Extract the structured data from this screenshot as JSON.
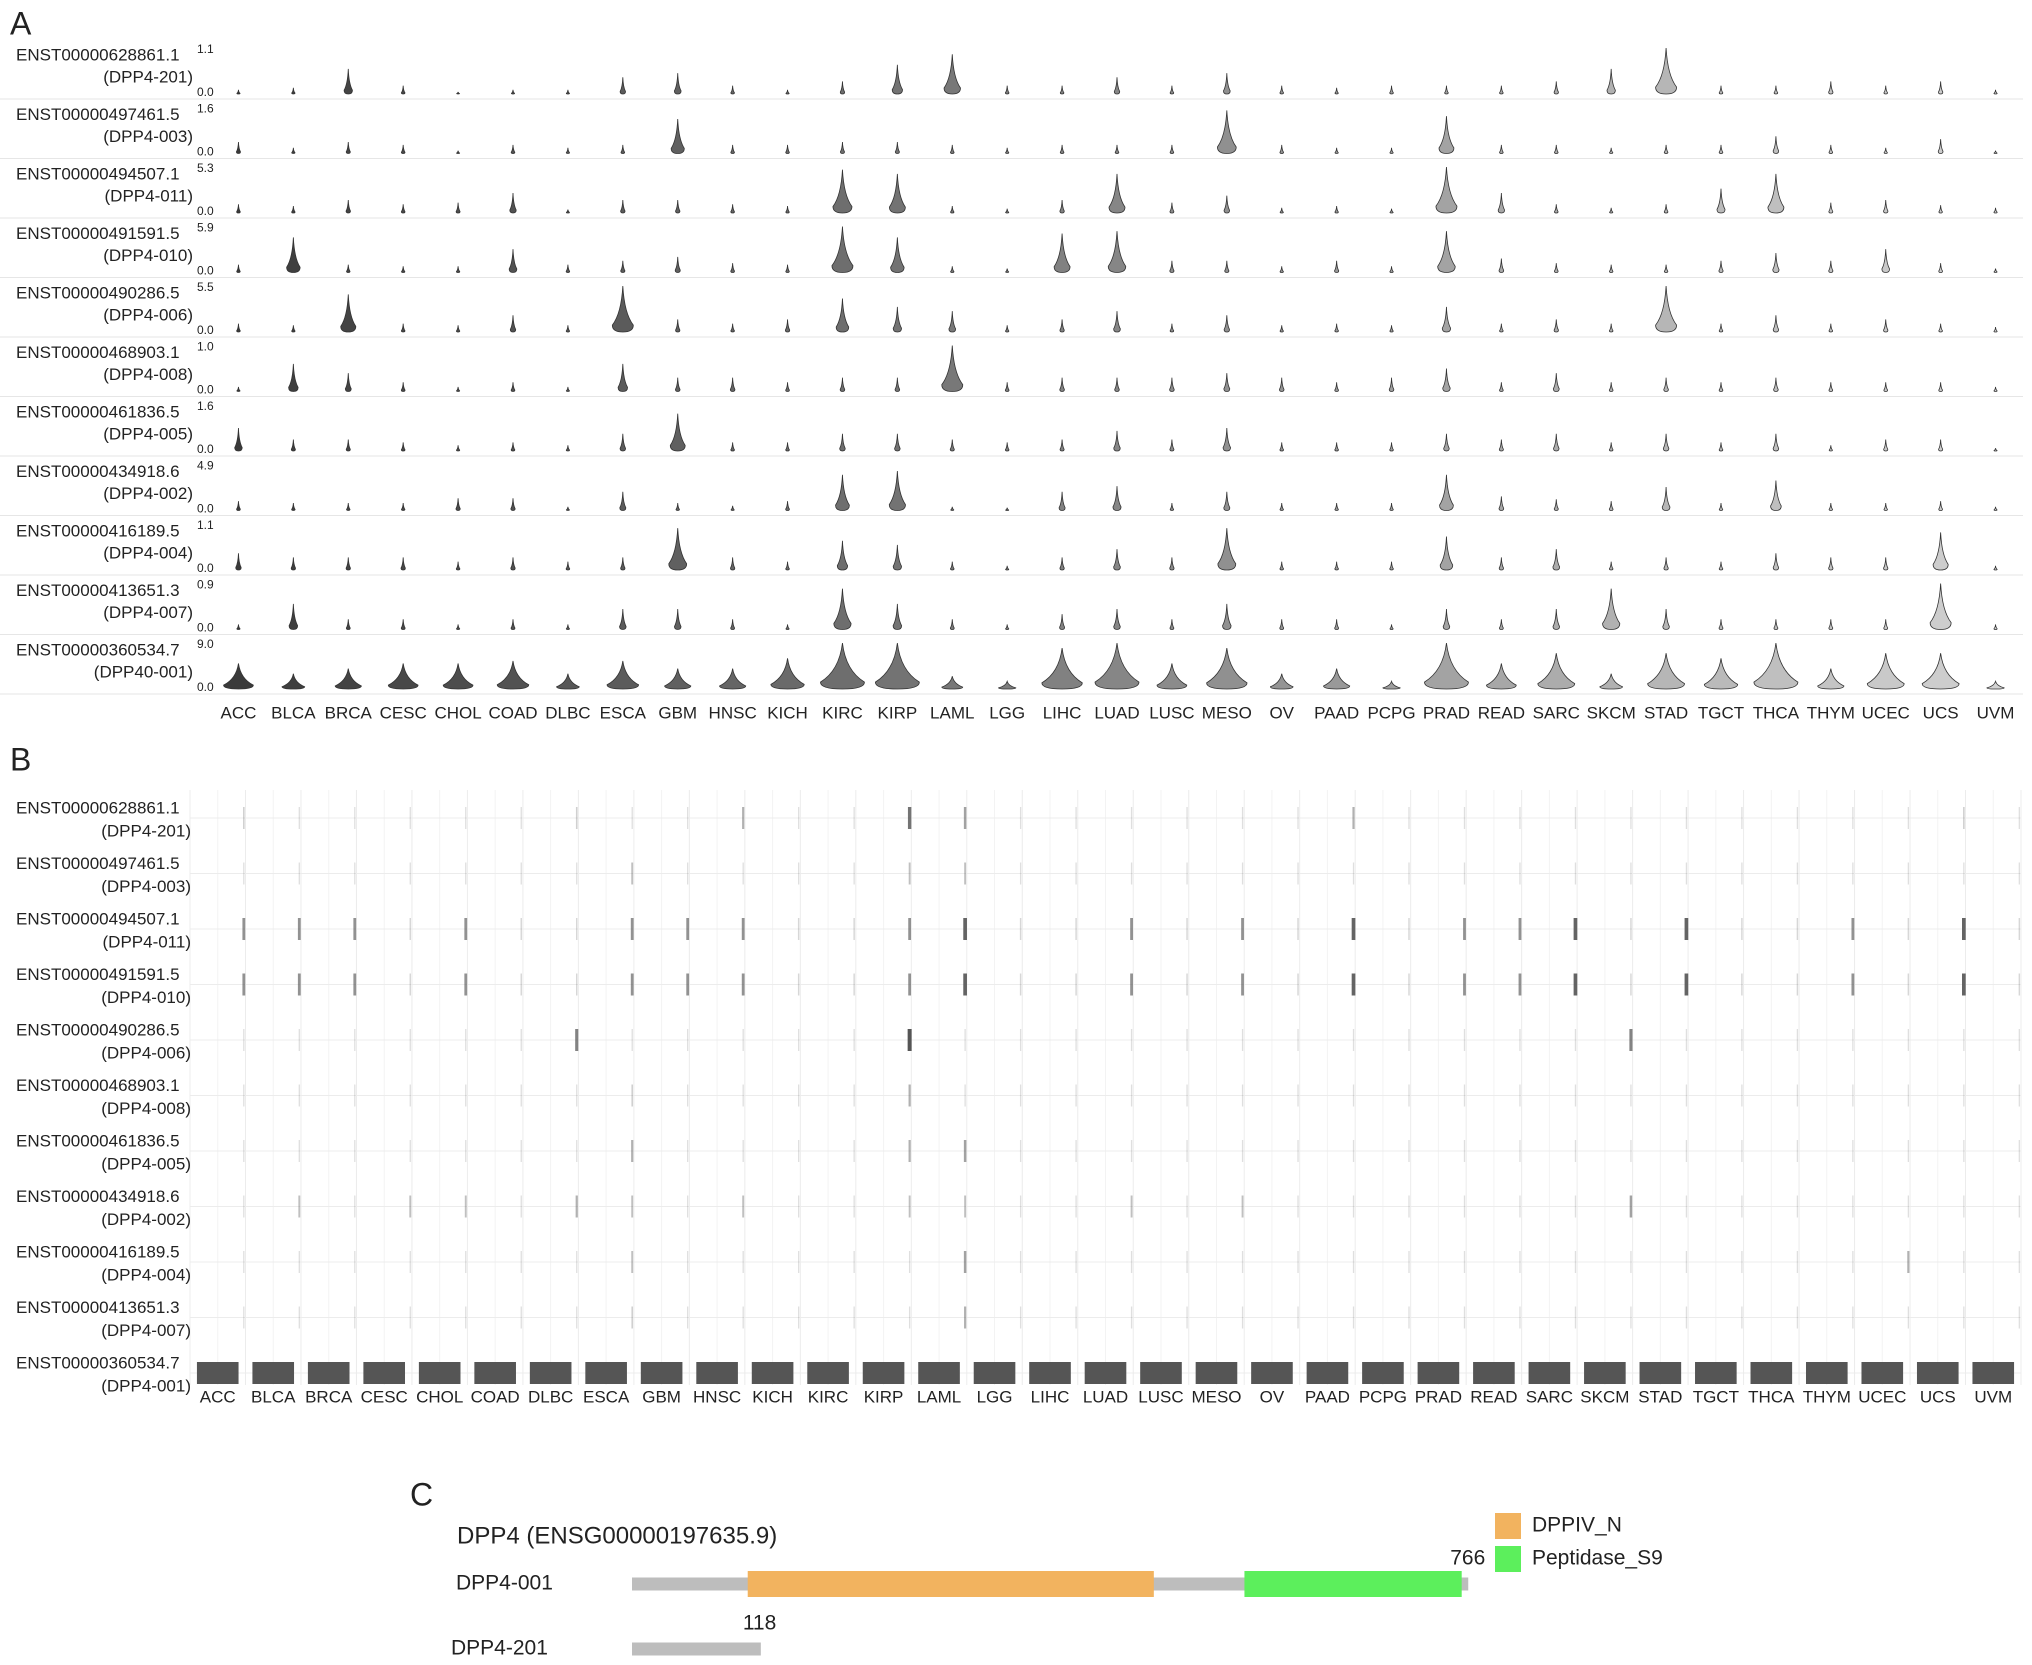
{
  "chart_data": [
    {
      "type": "violin",
      "label": "A",
      "categories": [
        "ACC",
        "BLCA",
        "BRCA",
        "CESC",
        "CHOL",
        "COAD",
        "DLBC",
        "ESCA",
        "GBM",
        "HNSC",
        "KICH",
        "KIRC",
        "KIRP",
        "LAML",
        "LGG",
        "LIHC",
        "LUAD",
        "LUSC",
        "MESO",
        "OV",
        "PAAD",
        "PCPG",
        "PRAD",
        "READ",
        "SARC",
        "SKCM",
        "STAD",
        "TGCT",
        "THCA",
        "THYM",
        "UCEC",
        "UCS",
        "UVM"
      ],
      "color_range": [
        "#3a3a3a",
        "#d2d2d2"
      ],
      "series": [
        {
          "name": "ENST00000628861.1",
          "label": "(DPP4-201)",
          "ylim": [
            0,
            1.1
          ],
          "yticks": [
            {
              "value": 0,
              "label": "0.0"
            },
            1.1
          ],
          "values": [
            0.1,
            0.15,
            0.6,
            0.2,
            0.05,
            0.1,
            0.1,
            0.4,
            0.5,
            0.2,
            0.1,
            0.3,
            0.7,
            0.95,
            0.2,
            0.2,
            0.4,
            0.2,
            0.5,
            0.2,
            0.15,
            0.2,
            0.2,
            0.2,
            0.3,
            0.6,
            1.1,
            0.2,
            0.2,
            0.3,
            0.2,
            0.3,
            0.1
          ]
        },
        {
          "name": "ENST00000497461.5",
          "label": "(DPP4-003)",
          "ylim": [
            0,
            1.6
          ],
          "yticks": [
            {
              "value": 0,
              "label": "0.0"
            },
            1.6
          ],
          "values": [
            0.4,
            0.2,
            0.4,
            0.3,
            0.1,
            0.3,
            0.2,
            0.3,
            1.2,
            0.3,
            0.3,
            0.4,
            0.4,
            0.3,
            0.2,
            0.3,
            0.3,
            0.3,
            1.5,
            0.3,
            0.2,
            0.2,
            1.3,
            0.3,
            0.3,
            0.2,
            0.3,
            0.3,
            0.6,
            0.3,
            0.2,
            0.5,
            0.1
          ]
        },
        {
          "name": "ENST00000494507.1",
          "label": "(DPP4-011)",
          "ylim": [
            0,
            5.3
          ],
          "yticks": [
            {
              "value": 0,
              "label": "0.0"
            },
            5.3
          ],
          "values": [
            1.0,
            0.8,
            1.5,
            1.0,
            1.2,
            2.3,
            0.4,
            1.5,
            1.5,
            1.0,
            0.8,
            5.0,
            4.5,
            0.8,
            0.5,
            1.5,
            4.5,
            1.2,
            2.0,
            0.6,
            0.8,
            0.5,
            5.3,
            2.3,
            1.0,
            0.6,
            1.0,
            2.8,
            4.5,
            1.2,
            1.5,
            0.9,
            0.6
          ]
        },
        {
          "name": "ENST00000491591.5",
          "label": "(DPP4-010)",
          "ylim": [
            0,
            5.9
          ],
          "yticks": [
            {
              "value": 0,
              "label": "0.0"
            },
            5.9
          ],
          "values": [
            1.0,
            4.5,
            1.0,
            0.8,
            0.8,
            3.0,
            1.0,
            1.5,
            2.0,
            1.2,
            1.0,
            5.9,
            4.5,
            0.8,
            0.5,
            5.0,
            5.3,
            1.5,
            1.5,
            0.8,
            1.5,
            0.8,
            5.3,
            1.8,
            1.2,
            1.0,
            1.0,
            1.5,
            2.5,
            1.5,
            3.0,
            1.2,
            0.5
          ]
        },
        {
          "name": "ENST00000490286.5",
          "label": "(DPP4-006)",
          "ylim": [
            0,
            5.5
          ],
          "yticks": [
            {
              "value": 0,
              "label": "0.0"
            },
            5.5
          ],
          "values": [
            1.0,
            0.8,
            4.5,
            1.0,
            0.8,
            2.0,
            0.8,
            5.5,
            1.5,
            1.0,
            1.5,
            4.0,
            3.0,
            2.5,
            0.8,
            1.5,
            2.5,
            1.0,
            2.0,
            0.8,
            1.0,
            0.8,
            3.0,
            1.0,
            1.5,
            1.0,
            5.5,
            1.0,
            2.0,
            1.0,
            1.5,
            1.0,
            0.6
          ]
        },
        {
          "name": "ENST00000468903.1",
          "label": "(DPP4-008)",
          "ylim": [
            0,
            1
          ],
          "yticks": [
            {
              "value": 0,
              "label": "0.0"
            },
            {
              "value": 1,
              "label": "1.0"
            }
          ],
          "values": [
            0.1,
            0.6,
            0.4,
            0.2,
            0.1,
            0.2,
            0.1,
            0.6,
            0.3,
            0.3,
            0.2,
            0.3,
            0.3,
            1.0,
            0.2,
            0.3,
            0.3,
            0.3,
            0.4,
            0.3,
            0.2,
            0.3,
            0.5,
            0.2,
            0.4,
            0.2,
            0.3,
            0.2,
            0.3,
            0.2,
            0.2,
            0.2,
            0.1
          ]
        },
        {
          "name": "ENST00000461836.5",
          "label": "(DPP4-005)",
          "ylim": [
            0,
            1.6
          ],
          "yticks": [
            {
              "value": 0,
              "label": "0.0"
            },
            1.6
          ],
          "values": [
            0.8,
            0.4,
            0.4,
            0.3,
            0.2,
            0.3,
            0.2,
            0.6,
            1.3,
            0.3,
            0.3,
            0.6,
            0.6,
            0.4,
            0.3,
            0.4,
            0.7,
            0.4,
            0.8,
            0.3,
            0.3,
            0.3,
            0.6,
            0.4,
            0.6,
            0.3,
            0.6,
            0.3,
            0.6,
            0.2,
            0.4,
            0.4,
            0.1
          ]
        },
        {
          "name": "ENST00000434918.6",
          "label": "(DPP4-002)",
          "ylim": [
            0,
            4.9
          ],
          "yticks": [
            {
              "value": 0,
              "label": "0.0"
            },
            4.9
          ],
          "values": [
            1.0,
            0.8,
            0.8,
            0.8,
            1.3,
            1.3,
            0.4,
            2.0,
            0.8,
            0.5,
            1.0,
            3.8,
            4.2,
            0.4,
            0.3,
            2.0,
            2.6,
            0.8,
            2.0,
            0.8,
            0.8,
            0.8,
            3.8,
            1.5,
            1.2,
            1.0,
            2.5,
            0.8,
            3.2,
            0.8,
            0.8,
            1.0,
            0.4
          ]
        },
        {
          "name": "ENST00000416189.5",
          "label": "(DPP4-004)",
          "ylim": [
            0,
            1.1
          ],
          "yticks": [
            {
              "value": 0,
              "label": "0.0"
            },
            1.1
          ],
          "values": [
            0.4,
            0.3,
            0.3,
            0.3,
            0.2,
            0.3,
            0.2,
            0.3,
            1.0,
            0.3,
            0.2,
            0.7,
            0.6,
            0.2,
            0.1,
            0.3,
            0.5,
            0.3,
            1.0,
            0.2,
            0.2,
            0.2,
            0.8,
            0.3,
            0.5,
            0.2,
            0.3,
            0.2,
            0.4,
            0.3,
            0.3,
            0.9,
            0.1
          ]
        },
        {
          "name": "ENST00000413651.3",
          "label": "(DPP4-007)",
          "ylim": [
            0,
            0.9
          ],
          "yticks": [
            {
              "value": 0,
              "label": "0.0"
            },
            0.9
          ],
          "values": [
            0.1,
            0.5,
            0.2,
            0.2,
            0.1,
            0.2,
            0.1,
            0.4,
            0.4,
            0.2,
            0.1,
            0.8,
            0.5,
            0.2,
            0.1,
            0.3,
            0.4,
            0.2,
            0.5,
            0.2,
            0.2,
            0.1,
            0.4,
            0.2,
            0.4,
            0.8,
            0.4,
            0.2,
            0.2,
            0.2,
            0.2,
            0.9,
            0.1
          ]
        },
        {
          "name": "ENST00000360534.7",
          "label": "(DPP40-001)",
          "ylim": [
            0,
            9
          ],
          "yticks": [
            {
              "value": 0,
              "label": "0.0"
            },
            {
              "value": 9,
              "label": "9.0"
            }
          ],
          "values": [
            5,
            3,
            4,
            5,
            5,
            5.5,
            3,
            5.5,
            4,
            4,
            6,
            9,
            9,
            2.5,
            1.5,
            8,
            9,
            5,
            8,
            3,
            4,
            1.5,
            9,
            5,
            7,
            3,
            7,
            6,
            9,
            4,
            7,
            7,
            1.5
          ]
        }
      ]
    },
    {
      "type": "strip",
      "label": "B",
      "color": "#555555",
      "categories": [
        "ACC",
        "BLCA",
        "BRCA",
        "CESC",
        "CHOL",
        "COAD",
        "DLBC",
        "ESCA",
        "GBM",
        "HNSC",
        "KICH",
        "KIRC",
        "KIRP",
        "LAML",
        "LGG",
        "LIHC",
        "LUAD",
        "LUSC",
        "MESO",
        "OV",
        "PAAD",
        "PCPG",
        "PRAD",
        "READ",
        "SARC",
        "SKCM",
        "STAD",
        "TGCT",
        "THCA",
        "THYM",
        "UCEC",
        "UCS",
        "UVM"
      ],
      "series": [
        {
          "name": "ENST00000628861.1",
          "label": "(DPP4-201)",
          "values": [
            0.2,
            0.1,
            0.1,
            0.1,
            0.1,
            0.1,
            0.2,
            0.1,
            0.1,
            0.4,
            0.1,
            0.1,
            0.8,
            0.5,
            0.1,
            0.1,
            0.1,
            0.1,
            0.1,
            0.1,
            0.4,
            0.1,
            0.1,
            0.1,
            0.1,
            0.1,
            0.1,
            0.1,
            0.1,
            0.1,
            0.1,
            0.2,
            0.1
          ]
        },
        {
          "name": "ENST00000497461.5",
          "label": "(DPP4-003)",
          "values": [
            0.1,
            0.1,
            0.1,
            0.1,
            0.1,
            0.1,
            0.1,
            0.3,
            0.1,
            0.1,
            0.1,
            0.1,
            0.3,
            0.3,
            0.1,
            0.1,
            0.1,
            0.1,
            0.1,
            0.1,
            0.1,
            0.1,
            0.1,
            0.1,
            0.1,
            0.1,
            0.1,
            0.1,
            0.1,
            0.1,
            0.1,
            0.1,
            0.1
          ]
        },
        {
          "name": "ENST00000494507.1",
          "label": "(DPP4-011)",
          "values": [
            0.6,
            0.6,
            0.6,
            0.15,
            0.6,
            0.15,
            0.15,
            0.6,
            0.6,
            0.6,
            0.15,
            0.15,
            0.6,
            0.9,
            0.15,
            0.15,
            0.6,
            0.15,
            0.6,
            0.15,
            0.9,
            0.15,
            0.6,
            0.6,
            0.9,
            0.15,
            0.9,
            0.15,
            0.15,
            0.6,
            0.15,
            0.9,
            0.15
          ]
        },
        {
          "name": "ENST00000491591.5",
          "label": "(DPP4-010)",
          "values": [
            0.6,
            0.6,
            0.6,
            0.15,
            0.6,
            0.15,
            0.15,
            0.6,
            0.6,
            0.6,
            0.15,
            0.15,
            0.6,
            0.9,
            0.15,
            0.15,
            0.6,
            0.15,
            0.6,
            0.15,
            0.9,
            0.15,
            0.6,
            0.6,
            0.9,
            0.15,
            0.9,
            0.15,
            0.15,
            0.6,
            0.15,
            0.9,
            0.15
          ]
        },
        {
          "name": "ENST00000490286.5",
          "label": "(DPP4-006)",
          "values": [
            0.1,
            0.1,
            0.1,
            0.1,
            0.1,
            0.1,
            0.7,
            0.1,
            0.1,
            0.1,
            0.1,
            0.1,
            1.0,
            0.1,
            0.1,
            0.1,
            0.1,
            0.1,
            0.1,
            0.1,
            0.1,
            0.1,
            0.1,
            0.1,
            0.1,
            0.7,
            0.1,
            0.1,
            0.1,
            0.1,
            0.1,
            0.1,
            0.1
          ]
        },
        {
          "name": "ENST00000468903.1",
          "label": "(DPP4-008)",
          "values": [
            0.1,
            0.1,
            0.1,
            0.1,
            0.1,
            0.1,
            0.1,
            0.2,
            0.1,
            0.1,
            0.1,
            0.1,
            0.4,
            0.1,
            0.1,
            0.1,
            0.1,
            0.1,
            0.1,
            0.1,
            0.1,
            0.1,
            0.1,
            0.1,
            0.1,
            0.1,
            0.1,
            0.1,
            0.1,
            0.1,
            0.1,
            0.1,
            0.1
          ]
        },
        {
          "name": "ENST00000461836.5",
          "label": "(DPP4-005)",
          "values": [
            0.1,
            0.1,
            0.1,
            0.1,
            0.1,
            0.1,
            0.1,
            0.4,
            0.1,
            0.1,
            0.1,
            0.1,
            0.4,
            0.5,
            0.1,
            0.1,
            0.1,
            0.1,
            0.1,
            0.1,
            0.1,
            0.1,
            0.1,
            0.1,
            0.1,
            0.1,
            0.1,
            0.1,
            0.1,
            0.1,
            0.1,
            0.1,
            0.1
          ]
        },
        {
          "name": "ENST00000434918.6",
          "label": "(DPP4-002)",
          "values": [
            0.1,
            0.3,
            0.1,
            0.3,
            0.3,
            0.1,
            0.4,
            0.3,
            0.1,
            0.3,
            0.1,
            0.1,
            0.3,
            0.3,
            0.1,
            0.1,
            0.3,
            0.1,
            0.3,
            0.1,
            0.1,
            0.1,
            0.1,
            0.1,
            0.1,
            0.5,
            0.1,
            0.1,
            0.1,
            0.1,
            0.1,
            0.1,
            0.1
          ]
        },
        {
          "name": "ENST00000416189.5",
          "label": "(DPP4-004)",
          "values": [
            0.1,
            0.1,
            0.1,
            0.1,
            0.1,
            0.1,
            0.1,
            0.3,
            0.1,
            0.1,
            0.1,
            0.1,
            0.1,
            0.5,
            0.1,
            0.1,
            0.1,
            0.1,
            0.1,
            0.1,
            0.1,
            0.1,
            0.1,
            0.1,
            0.1,
            0.1,
            0.1,
            0.1,
            0.1,
            0.1,
            0.4,
            0.1,
            0.1
          ]
        },
        {
          "name": "ENST00000413651.3",
          "label": "(DPP4-007)",
          "values": [
            0.1,
            0.1,
            0.1,
            0.1,
            0.1,
            0.1,
            0.1,
            0.2,
            0.1,
            0.1,
            0.1,
            0.1,
            0.1,
            0.4,
            0.1,
            0.1,
            0.1,
            0.1,
            0.1,
            0.1,
            0.1,
            0.1,
            0.1,
            0.1,
            0.1,
            0.1,
            0.1,
            0.1,
            0.1,
            0.1,
            0.1,
            0.1,
            0.1
          ]
        },
        {
          "name": "ENST00000360534.7",
          "label": "(DPP4-001)",
          "values": [
            1,
            1,
            1,
            1,
            1,
            1,
            1,
            1,
            1,
            1,
            1,
            1,
            1,
            1,
            1,
            1,
            1,
            1,
            1,
            1,
            1,
            1,
            1,
            1,
            1,
            1,
            1,
            1,
            1,
            1,
            1,
            1,
            1
          ]
        }
      ]
    }
  ],
  "domain_diagram": {
    "label": "C",
    "title": "DPP4 (ENSG00000197635.9)",
    "backbone_color": "#bdbdbd",
    "transcripts": [
      {
        "name": "DPP4-001",
        "length": 766,
        "domains": [
          {
            "name": "DPPIV_N",
            "start": 106,
            "end": 478,
            "color": "#f2b35f"
          },
          {
            "name": "Peptidase_S9",
            "start": 561,
            "end": 760,
            "color": "#5cef5c"
          }
        ]
      },
      {
        "name": "DPP4-201",
        "length": 118,
        "domains": []
      }
    ]
  }
}
